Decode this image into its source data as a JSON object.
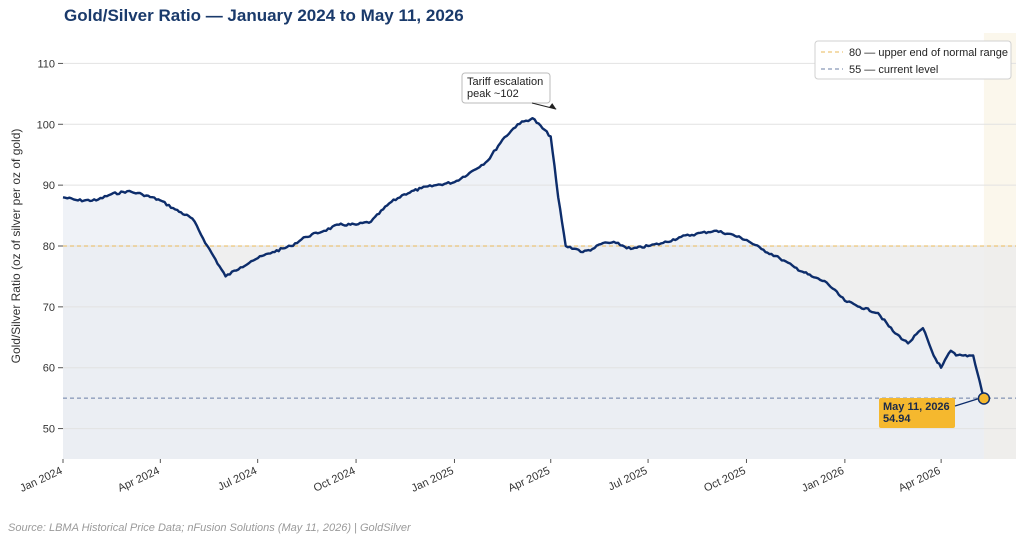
{
  "chart_data": {
    "type": "line",
    "title": "Gold/Silver Ratio — January 2024 to May 11, 2026",
    "ylabel": "Gold/Silver Ratio (oz of silver per oz of gold)",
    "xlabel": "",
    "ylim": [
      45,
      115
    ],
    "yticks": [
      50,
      60,
      70,
      80,
      90,
      100,
      110
    ],
    "xlim": [
      "2024-01-01",
      "2026-06-10"
    ],
    "xticks": [
      {
        "date": "2024-01-01",
        "label": "Jan 2024"
      },
      {
        "date": "2024-04-01",
        "label": "Apr 2024"
      },
      {
        "date": "2024-07-01",
        "label": "Jul 2024"
      },
      {
        "date": "2024-10-01",
        "label": "Oct 2024"
      },
      {
        "date": "2025-01-01",
        "label": "Jan 2025"
      },
      {
        "date": "2025-04-01",
        "label": "Apr 2025"
      },
      {
        "date": "2025-07-01",
        "label": "Jul 2025"
      },
      {
        "date": "2025-10-01",
        "label": "Oct 2025"
      },
      {
        "date": "2026-01-01",
        "label": "Jan 2026"
      },
      {
        "date": "2026-04-01",
        "label": "Apr 2026"
      }
    ],
    "grid": true,
    "legend_position": "top-right",
    "colors": {
      "line": "#0d2d6b",
      "fill": "#e9edf4",
      "upper_band": "#fbf7ec",
      "ref80": "#e8b85a",
      "ref55": "#6b7fa6",
      "highlight": "#f5b82e",
      "grid": "#e2e2e2"
    },
    "reference_lines": [
      {
        "value": 80,
        "label": "80 — upper end of normal range"
      },
      {
        "value": 55,
        "label": "55 — current level"
      }
    ],
    "annotations": [
      {
        "date": "2025-04-08",
        "value": 102,
        "lines": [
          "Tariff escalation",
          "peak ~102"
        ]
      }
    ],
    "last_point": {
      "date": "2026-05-11",
      "value": 54.94,
      "lines": [
        "May 11, 2026",
        "54.94"
      ]
    },
    "series": [
      {
        "x": [
          "2024-01-01",
          "2024-01-15",
          "2024-02-01",
          "2024-02-15",
          "2024-03-01",
          "2024-03-15",
          "2024-04-01",
          "2024-04-15",
          "2024-05-01",
          "2024-05-15",
          "2024-06-01",
          "2024-06-15",
          "2024-06-25",
          "2024-07-01",
          "2024-07-15",
          "2024-08-01",
          "2024-08-15",
          "2024-09-01",
          "2024-09-15",
          "2024-10-01",
          "2024-10-15",
          "2024-11-01",
          "2024-11-15",
          "2024-12-01",
          "2024-12-15",
          "2025-01-01",
          "2025-01-15",
          "2025-02-01",
          "2025-02-15",
          "2025-03-01",
          "2025-03-15",
          "2025-04-01",
          "2025-04-08",
          "2025-04-15",
          "2025-04-25",
          "2025-05-01",
          "2025-05-10",
          "2025-05-20",
          "2025-06-01",
          "2025-06-15",
          "2025-07-01",
          "2025-07-15",
          "2025-08-01",
          "2025-08-15",
          "2025-09-01",
          "2025-09-15",
          "2025-10-01",
          "2025-10-15",
          "2025-11-01",
          "2025-11-15",
          "2025-12-01",
          "2025-12-15",
          "2026-01-01",
          "2026-01-15",
          "2026-02-01",
          "2026-02-15",
          "2026-03-01",
          "2026-03-15",
          "2026-03-25",
          "2026-04-01",
          "2026-04-10",
          "2026-04-15",
          "2026-04-22",
          "2026-05-01",
          "2026-05-11"
        ],
        "values": [
          88,
          87.5,
          87.5,
          88.5,
          89,
          88.5,
          87.5,
          86,
          84.5,
          80,
          75,
          76.5,
          77.5,
          78,
          79,
          80,
          81.5,
          82.5,
          83.5,
          83.5,
          84,
          87,
          88.5,
          89.5,
          90,
          90.5,
          92,
          94,
          97.5,
          100,
          101,
          98,
          88,
          80,
          79.5,
          79,
          79.5,
          80.5,
          80.5,
          79.5,
          80,
          80.5,
          81.5,
          82,
          82.5,
          82,
          81,
          79.5,
          78,
          76.5,
          75,
          74,
          71,
          70,
          69,
          66,
          64,
          66.5,
          62,
          60,
          62.8,
          62,
          62,
          62,
          54.94
        ]
      }
    ]
  },
  "source_note": "Source: LBMA Historical Price Data; nFusion Solutions (May 11, 2026) | GoldSilver"
}
